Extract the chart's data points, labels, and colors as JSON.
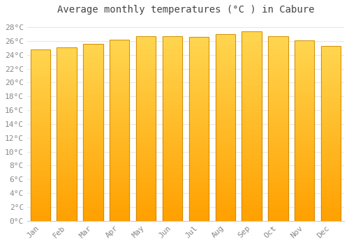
{
  "title": "Average monthly temperatures (°C ) in Cabure",
  "months": [
    "Jan",
    "Feb",
    "Mar",
    "Apr",
    "May",
    "Jun",
    "Jul",
    "Aug",
    "Sep",
    "Oct",
    "Nov",
    "Dec"
  ],
  "temperatures": [
    24.8,
    25.1,
    25.6,
    26.2,
    26.7,
    26.7,
    26.6,
    27.0,
    27.4,
    26.7,
    26.1,
    25.3
  ],
  "bar_color_top": "#FFD54F",
  "bar_color_bottom": "#FFA000",
  "bar_edge_color": "#CC8400",
  "ylim": [
    0,
    29
  ],
  "ytick_step": 2,
  "background_color": "#FFFFFF",
  "plot_bg_color": "#FFFFFF",
  "grid_color": "#E8E8E8",
  "title_fontsize": 10,
  "tick_fontsize": 8,
  "title_color": "#444444",
  "tick_color": "#888888",
  "bar_width": 0.75
}
